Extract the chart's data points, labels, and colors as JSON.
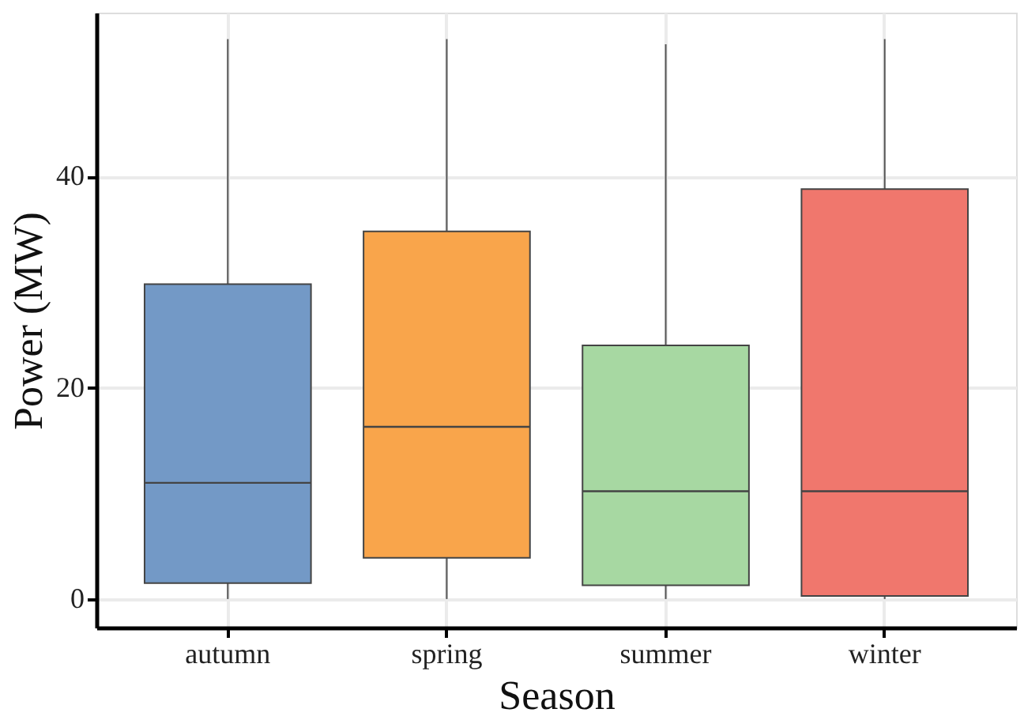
{
  "chart_data": {
    "type": "box",
    "xlabel": "Season",
    "ylabel": "Power (MW)",
    "categories": [
      "autumn",
      "spring",
      "summer",
      "winter"
    ],
    "boxes": [
      {
        "low": 0,
        "q1": 1.5,
        "median": 11.0,
        "q3": 29.8,
        "high": 53
      },
      {
        "low": 0,
        "q1": 3.9,
        "median": 16.3,
        "q3": 34.8,
        "high": 53
      },
      {
        "low": 0,
        "q1": 1.3,
        "median": 10.2,
        "q3": 24.0,
        "high": 52.5
      },
      {
        "low": 0,
        "q1": 0.3,
        "median": 10.2,
        "q3": 38.8,
        "high": 53
      }
    ],
    "colors": [
      "#7399c6",
      "#f9a54b",
      "#a7d8a2",
      "#f0776d"
    ],
    "ylim": [
      -2.7,
      55.5
    ],
    "yticks": [
      0,
      20,
      40
    ],
    "grid": true,
    "legend": false
  }
}
